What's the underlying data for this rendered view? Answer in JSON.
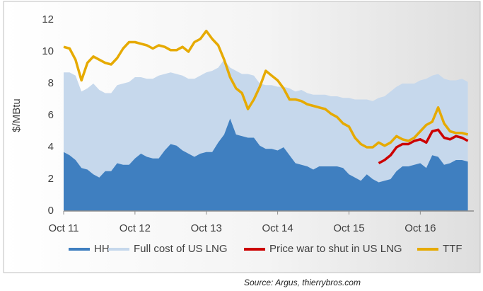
{
  "chart_data": {
    "type": "line",
    "ylabel": "$/MBtu",
    "source": "Source: Argus, thierrybros.com",
    "x": [
      "2011-10",
      "2011-11",
      "2011-12",
      "2012-01",
      "2012-02",
      "2012-03",
      "2012-04",
      "2012-05",
      "2012-06",
      "2012-07",
      "2012-08",
      "2012-09",
      "2012-10",
      "2012-11",
      "2012-12",
      "2013-01",
      "2013-02",
      "2013-03",
      "2013-04",
      "2013-05",
      "2013-06",
      "2013-07",
      "2013-08",
      "2013-09",
      "2013-10",
      "2013-11",
      "2013-12",
      "2014-01",
      "2014-02",
      "2014-03",
      "2014-04",
      "2014-05",
      "2014-06",
      "2014-07",
      "2014-08",
      "2014-09",
      "2014-10",
      "2014-11",
      "2014-12",
      "2015-01",
      "2015-02",
      "2015-03",
      "2015-04",
      "2015-05",
      "2015-06",
      "2015-07",
      "2015-08",
      "2015-09",
      "2015-10",
      "2015-11",
      "2015-12",
      "2016-01",
      "2016-02",
      "2016-03",
      "2016-04",
      "2016-05",
      "2016-06",
      "2016-07",
      "2016-08",
      "2016-09",
      "2016-10",
      "2016-11",
      "2016-12",
      "2017-01",
      "2017-02",
      "2017-03",
      "2017-04",
      "2017-05",
      "2017-06"
    ],
    "series": [
      {
        "name": "Full cost of US LNG",
        "style": "area",
        "color": "#c6d8ec",
        "values": [
          8.7,
          8.7,
          8.5,
          7.5,
          7.7,
          8.0,
          7.6,
          7.4,
          7.4,
          7.9,
          8.0,
          8.1,
          8.4,
          8.4,
          8.3,
          8.3,
          8.5,
          8.6,
          8.7,
          8.6,
          8.5,
          8.3,
          8.3,
          8.5,
          8.7,
          8.8,
          9.0,
          9.5,
          9.0,
          8.8,
          8.6,
          8.6,
          8.5,
          8.0,
          7.9,
          7.9,
          7.8,
          7.8,
          7.7,
          7.5,
          7.6,
          7.4,
          7.3,
          7.3,
          7.3,
          7.2,
          7.2,
          7.1,
          7.1,
          7.0,
          7.0,
          7.0,
          6.9,
          7.1,
          7.2,
          7.5,
          7.8,
          8.0,
          8.0,
          8.0,
          8.2,
          8.3,
          8.5,
          8.6,
          8.3,
          8.2,
          8.2,
          8.3,
          8.1
        ]
      },
      {
        "name": "HH",
        "style": "area",
        "color": "#3f7fc0",
        "values": [
          3.7,
          3.5,
          3.2,
          2.7,
          2.6,
          2.3,
          2.1,
          2.5,
          2.5,
          3.0,
          2.9,
          2.9,
          3.3,
          3.6,
          3.4,
          3.3,
          3.3,
          3.8,
          4.2,
          4.1,
          3.8,
          3.6,
          3.4,
          3.6,
          3.7,
          3.7,
          4.3,
          4.8,
          5.8,
          4.8,
          4.7,
          4.6,
          4.6,
          4.1,
          3.9,
          3.9,
          3.8,
          4.0,
          3.5,
          3.0,
          2.9,
          2.8,
          2.6,
          2.8,
          2.8,
          2.8,
          2.8,
          2.7,
          2.3,
          2.1,
          1.9,
          2.3,
          2.0,
          1.8,
          1.9,
          2.0,
          2.5,
          2.8,
          2.8,
          2.9,
          3.0,
          2.7,
          3.5,
          3.4,
          2.9,
          3.0,
          3.2,
          3.2,
          3.1
        ]
      },
      {
        "name": "Price war to shut in US LNG",
        "style": "line",
        "color": "#cc0000",
        "values": [
          null,
          null,
          null,
          null,
          null,
          null,
          null,
          null,
          null,
          null,
          null,
          null,
          null,
          null,
          null,
          null,
          null,
          null,
          null,
          null,
          null,
          null,
          null,
          null,
          null,
          null,
          null,
          null,
          null,
          null,
          null,
          null,
          null,
          null,
          null,
          null,
          null,
          null,
          null,
          null,
          null,
          null,
          null,
          null,
          null,
          null,
          null,
          null,
          null,
          null,
          null,
          null,
          null,
          3.0,
          3.2,
          3.5,
          4.0,
          4.2,
          4.2,
          4.4,
          4.5,
          4.3,
          5.0,
          5.1,
          4.6,
          4.5,
          4.7,
          4.6,
          4.4
        ]
      },
      {
        "name": "TTF",
        "style": "line",
        "color": "#e6aa00",
        "values": [
          10.3,
          10.2,
          9.5,
          8.2,
          9.3,
          9.7,
          9.5,
          9.3,
          9.2,
          9.6,
          10.2,
          10.6,
          10.6,
          10.5,
          10.4,
          10.2,
          10.4,
          10.3,
          10.1,
          10.1,
          10.3,
          10.0,
          10.6,
          10.8,
          11.3,
          10.8,
          10.4,
          9.5,
          8.4,
          7.7,
          7.4,
          6.4,
          7.0,
          7.8,
          8.8,
          8.5,
          8.2,
          7.7,
          7.0,
          7.0,
          6.9,
          6.7,
          6.6,
          6.5,
          6.4,
          6.1,
          5.9,
          5.5,
          5.3,
          4.6,
          4.2,
          4.0,
          4.0,
          4.3,
          4.1,
          4.3,
          4.7,
          4.5,
          4.4,
          4.6,
          5.0,
          5.4,
          5.6,
          6.5,
          5.5,
          5.0,
          4.9,
          4.9,
          4.8
        ]
      }
    ],
    "legend_order": [
      1,
      0,
      2,
      3
    ],
    "xlim": [
      "2011-10",
      "2017-07"
    ],
    "xticks": [
      {
        "value": "2011-10",
        "label": "Oct 11"
      },
      {
        "value": "2012-10",
        "label": "Oct 12"
      },
      {
        "value": "2013-10",
        "label": "Oct 13"
      },
      {
        "value": "2014-10",
        "label": "Oct 14"
      },
      {
        "value": "2015-10",
        "label": "Oct 15"
      },
      {
        "value": "2016-10",
        "label": "Oct 16"
      }
    ],
    "ylim": [
      0,
      12
    ],
    "yticks": [
      0,
      2,
      4,
      6,
      8,
      10,
      12
    ],
    "grid": false
  }
}
